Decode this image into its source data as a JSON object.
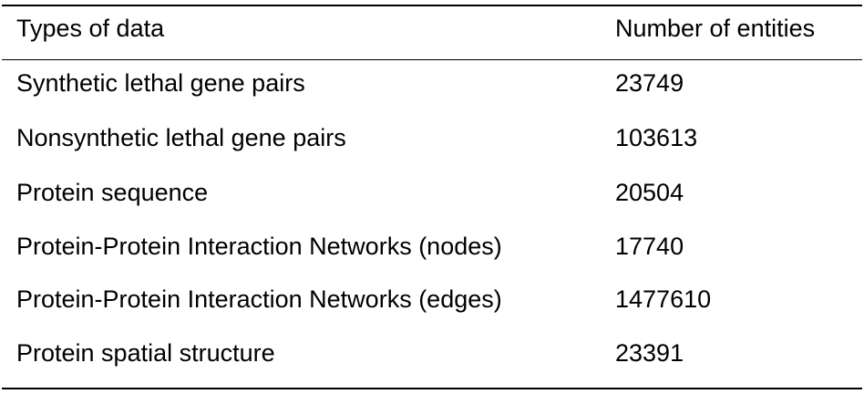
{
  "table": {
    "headers": {
      "type": "Types of data",
      "count": "Number of entities"
    },
    "rows": [
      {
        "type": "Synthetic lethal gene pairs",
        "count": "23749"
      },
      {
        "type": "Nonsynthetic lethal gene pairs",
        "count": "103613"
      },
      {
        "type": "Protein sequence",
        "count": "20504"
      },
      {
        "type": "Protein-Protein Interaction Networks (nodes)",
        "count": "17740"
      },
      {
        "type": "Protein-Protein Interaction Networks (edges)",
        "count": "1477610"
      },
      {
        "type": "Protein spatial structure",
        "count": "23391"
      }
    ]
  }
}
